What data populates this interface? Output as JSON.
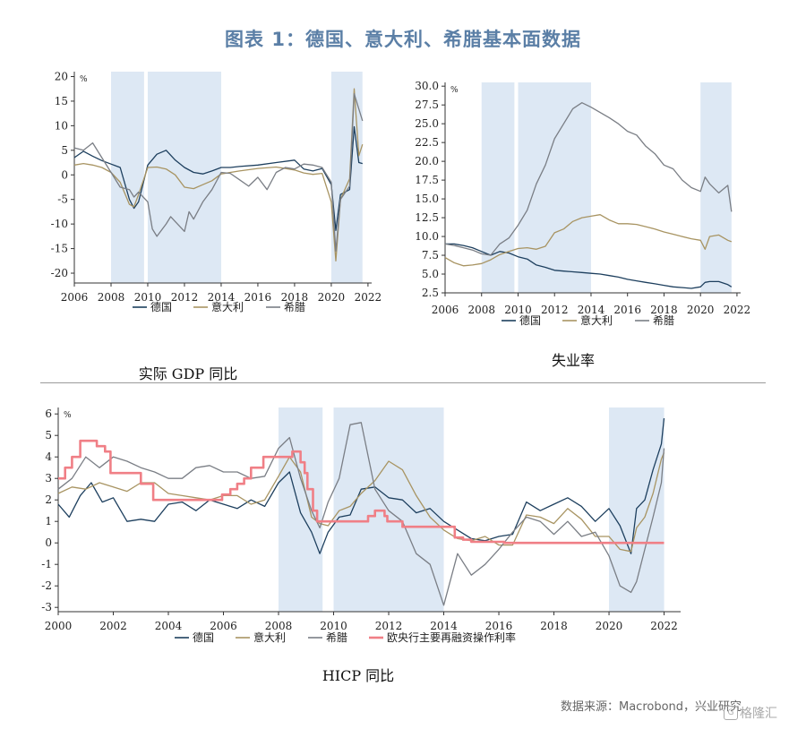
{
  "title": "图表 1：德国、意大利、希腊基本面数据",
  "source": "数据来源：Macrobond，兴业研究",
  "watermark": "格隆汇",
  "colors": {
    "germany": "#1d3f5e",
    "italy": "#a89462",
    "greece": "#7a7e85",
    "ecb": "#f07f86",
    "shade": "#dde8f4",
    "title": "#5b7fa6"
  },
  "chart_data": [
    {
      "type": "line",
      "caption": "实际 GDP 同比",
      "ylabel": "%",
      "ylim": [
        -22,
        21
      ],
      "xlim": [
        2006,
        2022.2
      ],
      "xticks": [
        2006,
        2008,
        2010,
        2012,
        2014,
        2016,
        2018,
        2020,
        2022
      ],
      "yticks": [
        -20,
        -15,
        -10,
        -5,
        0,
        5,
        10,
        15,
        20
      ],
      "ytick_labels": [
        "-20",
        "-15",
        "-10",
        "-5",
        "0",
        "5",
        "10",
        "15",
        "20"
      ],
      "shaded": [
        [
          2008.0,
          2009.8
        ],
        [
          2010.0,
          2014.0
        ],
        [
          2020.0,
          2021.7
        ]
      ],
      "legend": [
        "德国",
        "意大利",
        "希腊"
      ],
      "series": [
        {
          "name": "德国",
          "key": "germany",
          "x": [
            2006,
            2006.5,
            2007,
            2007.5,
            2008,
            2008.5,
            2009,
            2009.25,
            2009.5,
            2010,
            2010.5,
            2011,
            2011.5,
            2012,
            2012.5,
            2013,
            2013.5,
            2014,
            2014.5,
            2015,
            2016,
            2017,
            2018,
            2018.5,
            2019,
            2019.5,
            2020,
            2020.25,
            2020.5,
            2021,
            2021.25,
            2021.5,
            2021.7
          ],
          "values": [
            3.5,
            4.8,
            3.8,
            2.9,
            2.2,
            1.5,
            -5.0,
            -6.8,
            -5.5,
            2.0,
            4.2,
            5.0,
            3.0,
            1.5,
            0.5,
            0.2,
            0.8,
            1.5,
            1.5,
            1.7,
            2.0,
            2.5,
            3.0,
            1.2,
            0.8,
            1.3,
            -2.0,
            -11.3,
            -4.0,
            -3.0,
            9.8,
            2.5,
            2.3
          ]
        },
        {
          "name": "意大利",
          "key": "italy",
          "x": [
            2006,
            2006.5,
            2007,
            2007.5,
            2008,
            2008.5,
            2009,
            2009.25,
            2009.5,
            2010,
            2010.5,
            2011,
            2011.5,
            2012,
            2012.5,
            2013,
            2013.5,
            2014,
            2015,
            2016,
            2017,
            2018,
            2018.5,
            2019,
            2019.5,
            2020,
            2020.25,
            2020.5,
            2021,
            2021.25,
            2021.5,
            2021.7
          ],
          "values": [
            2.0,
            2.3,
            2.0,
            1.5,
            0.5,
            -1.5,
            -6.0,
            -6.5,
            -4.0,
            1.5,
            1.6,
            1.2,
            0.0,
            -2.5,
            -2.8,
            -2.0,
            -1.2,
            0.2,
            0.8,
            1.3,
            1.6,
            1.0,
            0.4,
            0.1,
            0.3,
            -5.5,
            -17.5,
            -5.0,
            -0.8,
            17.5,
            3.9,
            6.2
          ]
        },
        {
          "name": "希腊",
          "key": "greece",
          "x": [
            2006,
            2006.5,
            2007,
            2007.5,
            2008,
            2008.5,
            2009,
            2009.25,
            2009.5,
            2010,
            2010.25,
            2010.5,
            2011,
            2011.25,
            2011.5,
            2012,
            2012.25,
            2012.5,
            2013,
            2013.5,
            2014,
            2014.5,
            2015,
            2015.5,
            2016,
            2016.5,
            2017,
            2017.5,
            2018,
            2018.5,
            2019,
            2019.5,
            2020,
            2020.25,
            2020.5,
            2021,
            2021.25,
            2021.5,
            2021.7
          ],
          "values": [
            5.5,
            5.0,
            6.5,
            3.5,
            0.5,
            -2.5,
            -3.0,
            -4.5,
            -3.5,
            -5.5,
            -11.0,
            -12.5,
            -10.0,
            -8.5,
            -9.5,
            -11.5,
            -7.5,
            -9.0,
            -5.5,
            -3.0,
            0.5,
            0.3,
            -1.0,
            -2.3,
            -0.5,
            -3.0,
            0.5,
            1.5,
            1.2,
            2.2,
            2.0,
            1.5,
            -1.5,
            -15.5,
            -5.0,
            -2.3,
            16.5,
            13.4,
            11.0
          ]
        }
      ]
    },
    {
      "type": "line",
      "caption": "失业率",
      "ylabel": "%",
      "ylim": [
        2.5,
        30.5
      ],
      "xlim": [
        2006,
        2022.2
      ],
      "xticks": [
        2006,
        2008,
        2010,
        2012,
        2014,
        2016,
        2018,
        2020,
        2022
      ],
      "yticks": [
        2.5,
        5.0,
        7.5,
        10.0,
        12.5,
        15.0,
        17.5,
        20.0,
        22.5,
        25.0,
        27.5,
        30.0
      ],
      "ytick_labels": [
        "2.5",
        "5.0",
        "7.5",
        "10.0",
        "12.5",
        "15.0",
        "17.5",
        "20.0",
        "22.5",
        "25.0",
        "27.5",
        "30.0"
      ],
      "shaded": [
        [
          2008.0,
          2009.8
        ],
        [
          2010.0,
          2014.0
        ],
        [
          2020.0,
          2021.7
        ]
      ],
      "legend": [
        "德国",
        "意大利",
        "希腊"
      ],
      "series": [
        {
          "name": "德国",
          "key": "germany",
          "x": [
            2006,
            2006.5,
            2007,
            2007.5,
            2008,
            2008.5,
            2009,
            2009.5,
            2010,
            2010.5,
            2011,
            2011.5,
            2012,
            2012.5,
            2013,
            2013.5,
            2014,
            2014.5,
            2015,
            2015.5,
            2016,
            2016.5,
            2017,
            2017.5,
            2018,
            2018.5,
            2019,
            2019.5,
            2020,
            2020.25,
            2020.5,
            2021,
            2021.5,
            2021.7
          ],
          "values": [
            9.0,
            9.0,
            8.8,
            8.5,
            8.0,
            7.5,
            8.0,
            7.8,
            7.3,
            7.0,
            6.2,
            5.9,
            5.5,
            5.4,
            5.3,
            5.2,
            5.1,
            5.0,
            4.8,
            4.6,
            4.3,
            4.1,
            3.9,
            3.7,
            3.5,
            3.3,
            3.2,
            3.1,
            3.3,
            3.9,
            4.0,
            4.0,
            3.6,
            3.3
          ]
        },
        {
          "name": "意大利",
          "key": "italy",
          "x": [
            2006,
            2006.5,
            2007,
            2007.5,
            2008,
            2008.5,
            2009,
            2009.5,
            2010,
            2010.5,
            2011,
            2011.5,
            2012,
            2012.5,
            2013,
            2013.5,
            2014,
            2014.5,
            2015,
            2015.5,
            2016,
            2016.5,
            2017,
            2017.5,
            2018,
            2018.5,
            2019,
            2019.5,
            2020,
            2020.25,
            2020.5,
            2021,
            2021.5,
            2021.7
          ],
          "values": [
            7.2,
            6.5,
            6.1,
            6.2,
            6.4,
            6.9,
            7.6,
            8.0,
            8.4,
            8.5,
            8.3,
            8.7,
            10.5,
            11.0,
            12.0,
            12.5,
            12.7,
            12.9,
            12.2,
            11.7,
            11.7,
            11.6,
            11.3,
            11.0,
            10.6,
            10.3,
            10.0,
            9.7,
            9.5,
            8.3,
            10.0,
            10.2,
            9.5,
            9.3
          ]
        },
        {
          "name": "希腊",
          "key": "greece",
          "x": [
            2006,
            2006.5,
            2007,
            2007.5,
            2008,
            2008.5,
            2009,
            2009.5,
            2010,
            2010.5,
            2011,
            2011.5,
            2012,
            2012.5,
            2013,
            2013.5,
            2014,
            2014.5,
            2015,
            2015.5,
            2016,
            2016.5,
            2017,
            2017.5,
            2018,
            2018.5,
            2019,
            2019.5,
            2020,
            2020.25,
            2020.5,
            2021,
            2021.5,
            2021.7
          ],
          "values": [
            9.0,
            8.8,
            8.5,
            8.2,
            7.7,
            7.5,
            9.0,
            9.8,
            11.5,
            13.5,
            17.0,
            19.5,
            23.0,
            25.0,
            27.0,
            27.8,
            27.2,
            26.5,
            25.8,
            25.0,
            24.0,
            23.5,
            22.0,
            21.0,
            19.5,
            19.0,
            17.5,
            16.5,
            16.0,
            17.9,
            17.0,
            15.8,
            16.8,
            13.3
          ]
        }
      ]
    },
    {
      "type": "line",
      "caption": "HICP 同比",
      "ylabel": "%",
      "ylim": [
        -3.2,
        6.3
      ],
      "xlim": [
        2000,
        2022.6
      ],
      "xticks": [
        2000,
        2002,
        2004,
        2006,
        2008,
        2010,
        2012,
        2014,
        2016,
        2018,
        2020,
        2022
      ],
      "yticks": [
        -3,
        -2,
        -1,
        0,
        1,
        2,
        3,
        4,
        5,
        6
      ],
      "ytick_labels": [
        "-3",
        "-2",
        "-1",
        "0",
        "1",
        "2",
        "3",
        "4",
        "5",
        "6"
      ],
      "shaded": [
        [
          2008.0,
          2009.6
        ],
        [
          2010.0,
          2014.0
        ],
        [
          2020.0,
          2022.0
        ]
      ],
      "legend": [
        "德国",
        "意大利",
        "希腊",
        "欧央行主要再融资操作利率"
      ],
      "series": [
        {
          "name": "德国",
          "key": "germany",
          "x": [
            2000,
            2000.4,
            2000.8,
            2001.2,
            2001.6,
            2002,
            2002.5,
            2003,
            2003.5,
            2004,
            2004.5,
            2005,
            2005.5,
            2006,
            2006.5,
            2007,
            2007.5,
            2008,
            2008.4,
            2008.8,
            2009.2,
            2009.5,
            2009.8,
            2010.2,
            2010.6,
            2011,
            2011.5,
            2012,
            2012.5,
            2013,
            2013.5,
            2014,
            2014.5,
            2015,
            2015.5,
            2016,
            2016.5,
            2017,
            2017.5,
            2018,
            2018.5,
            2019,
            2019.5,
            2020,
            2020.4,
            2020.8,
            2021,
            2021.3,
            2021.6,
            2021.9,
            2022
          ],
          "values": [
            1.8,
            1.2,
            2.2,
            2.8,
            1.9,
            2.1,
            1.0,
            1.1,
            1.0,
            1.8,
            1.9,
            1.5,
            2.0,
            1.8,
            1.6,
            2.0,
            1.7,
            2.8,
            3.3,
            1.4,
            0.5,
            -0.5,
            0.5,
            1.2,
            1.3,
            2.5,
            2.6,
            2.1,
            2.0,
            1.4,
            1.6,
            1.0,
            0.6,
            0.2,
            0.1,
            0.3,
            0.4,
            1.9,
            1.5,
            1.8,
            2.1,
            1.7,
            1.0,
            1.6,
            0.8,
            -0.5,
            1.6,
            2.0,
            3.4,
            4.6,
            5.8
          ]
        },
        {
          "name": "意大利",
          "key": "italy",
          "x": [
            2000,
            2000.5,
            2001,
            2001.5,
            2002,
            2002.5,
            2003,
            2003.5,
            2004,
            2004.5,
            2005,
            2005.5,
            2006,
            2006.5,
            2007,
            2007.5,
            2008,
            2008.4,
            2008.8,
            2009.2,
            2009.5,
            2009.8,
            2010.2,
            2010.6,
            2011,
            2011.5,
            2012,
            2012.5,
            2013,
            2013.5,
            2014,
            2014.5,
            2015,
            2015.5,
            2016,
            2016.5,
            2017,
            2017.5,
            2018,
            2018.5,
            2019,
            2019.5,
            2020,
            2020.4,
            2020.8,
            2021,
            2021.3,
            2021.6,
            2021.9,
            2022
          ],
          "values": [
            2.3,
            2.6,
            2.5,
            2.8,
            2.6,
            2.4,
            2.8,
            2.8,
            2.3,
            2.2,
            2.1,
            2.0,
            2.2,
            2.2,
            1.8,
            2.0,
            3.1,
            4.0,
            3.3,
            1.2,
            0.9,
            0.8,
            1.5,
            1.7,
            2.3,
            2.9,
            3.8,
            3.4,
            2.2,
            1.2,
            0.6,
            0.2,
            0.1,
            0.3,
            -0.1,
            -0.1,
            1.3,
            1.2,
            0.9,
            1.6,
            1.1,
            0.3,
            0.3,
            -0.3,
            -0.4,
            0.7,
            1.2,
            2.3,
            3.9,
            4.2
          ]
        },
        {
          "name": "希腊",
          "key": "greece",
          "x": [
            2000,
            2000.5,
            2001,
            2001.5,
            2002,
            2002.5,
            2003,
            2003.5,
            2004,
            2004.5,
            2005,
            2005.5,
            2006,
            2006.5,
            2007,
            2007.5,
            2008,
            2008.4,
            2008.8,
            2009.2,
            2009.5,
            2009.8,
            2010.2,
            2010.6,
            2011,
            2011.5,
            2012,
            2012.5,
            2013,
            2013.5,
            2014,
            2014.5,
            2015,
            2015.5,
            2016,
            2016.5,
            2017,
            2017.5,
            2018,
            2018.5,
            2019,
            2019.5,
            2020,
            2020.4,
            2020.8,
            2021,
            2021.3,
            2021.6,
            2021.9,
            2022
          ],
          "values": [
            2.5,
            3.0,
            4.0,
            3.5,
            4.0,
            3.8,
            3.5,
            3.3,
            3.0,
            3.0,
            3.5,
            3.6,
            3.3,
            3.3,
            3.0,
            3.1,
            4.4,
            4.9,
            3.0,
            1.5,
            0.7,
            1.9,
            3.0,
            5.5,
            5.6,
            2.5,
            1.5,
            1.0,
            -0.5,
            -1.0,
            -2.9,
            -0.5,
            -1.5,
            -1.0,
            -0.3,
            0.5,
            1.2,
            1.0,
            0.4,
            1.0,
            0.3,
            0.5,
            -0.6,
            -2.0,
            -2.3,
            -1.8,
            -0.3,
            1.2,
            2.8,
            4.4
          ]
        },
        {
          "name": "欧央行主要再融资操作利率",
          "key": "ecb",
          "step": true,
          "x": [
            2000,
            2000.25,
            2000.5,
            2000.8,
            2001.4,
            2001.7,
            2001.9,
            2003.0,
            2003.45,
            2005.95,
            2006.25,
            2006.5,
            2006.75,
            2007.0,
            2007.45,
            2008.5,
            2008.8,
            2008.95,
            2009.05,
            2009.25,
            2009.4,
            2011.25,
            2011.5,
            2011.85,
            2011.95,
            2012.5,
            2014.4,
            2014.7,
            2015.0,
            2016.2,
            2022.0
          ],
          "values": [
            3.0,
            3.5,
            4.0,
            4.75,
            4.5,
            4.25,
            3.25,
            2.75,
            2.0,
            2.25,
            2.5,
            2.75,
            3.0,
            3.5,
            4.0,
            4.25,
            3.75,
            3.25,
            2.5,
            1.5,
            1.0,
            1.25,
            1.5,
            1.25,
            1.0,
            0.75,
            0.25,
            0.15,
            0.05,
            0.0,
            0.0
          ]
        }
      ]
    }
  ]
}
